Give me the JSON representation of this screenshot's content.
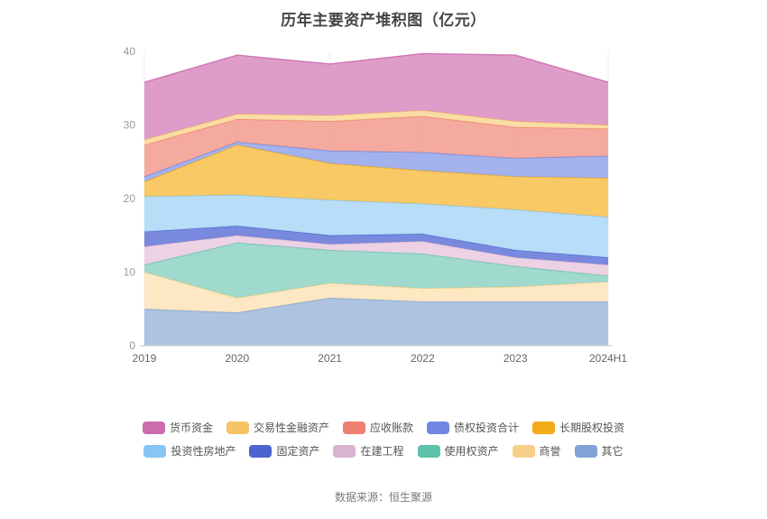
{
  "page": {
    "title": "历年主要资产堆积图（亿元）",
    "source": "数据来源：恒生聚源"
  },
  "chart_data": {
    "type": "area",
    "stacked": true,
    "title": "历年主要资产堆积图（亿元）",
    "x": [
      "2019",
      "2020",
      "2021",
      "2022",
      "2023",
      "2024H1"
    ],
    "xlabel": "",
    "ylabel": "",
    "ylim": [
      0,
      40
    ],
    "yticks": [
      0,
      10,
      20,
      30,
      40
    ],
    "grid": "faint-vertical-gridlines",
    "legend_position": "bottom",
    "series_order": "bottom-to-top",
    "series": [
      {
        "name": "其它",
        "values": [
          5.0,
          4.5,
          6.5,
          6.0,
          6.0,
          6.0
        ],
        "color": "#7fa3d4",
        "area": "#9db8dc"
      },
      {
        "name": "商誉",
        "values": [
          5.0,
          2.0,
          2.0,
          1.8,
          2.0,
          2.7
        ],
        "color": "#f7cf8a",
        "area": "#fde4b8"
      },
      {
        "name": "使用权资产",
        "values": [
          1.0,
          7.5,
          4.5,
          4.7,
          2.8,
          0.8
        ],
        "color": "#5fc0ab",
        "area": "#8ed3c3"
      },
      {
        "name": "在建工程",
        "values": [
          2.5,
          1.0,
          0.8,
          1.7,
          1.2,
          1.5
        ],
        "color": "#d9b3cf",
        "area": "#e9cadf"
      },
      {
        "name": "固定资产",
        "values": [
          2.0,
          1.3,
          1.2,
          1.0,
          1.0,
          1.0
        ],
        "color": "#4d63cf",
        "area": "#6275d8"
      },
      {
        "name": "投资性房地产",
        "values": [
          4.8,
          4.2,
          4.8,
          4.1,
          5.5,
          5.5
        ],
        "color": "#86c5f4",
        "area": "#aad7f7"
      },
      {
        "name": "长期股权投资",
        "values": [
          2.0,
          6.8,
          5.0,
          4.5,
          4.5,
          5.3
        ],
        "color": "#f2ab18",
        "area": "#f7c04a"
      },
      {
        "name": "债权投资合计",
        "values": [
          0.7,
          0.4,
          1.7,
          2.5,
          2.5,
          3.0
        ],
        "color": "#6f87e3",
        "area": "#93a5ea"
      },
      {
        "name": "应收账款",
        "values": [
          4.3,
          3.1,
          4.0,
          4.9,
          4.2,
          3.7
        ],
        "color": "#ee7f70",
        "area": "#f39b8e"
      },
      {
        "name": "交易性金融资产",
        "values": [
          0.7,
          0.7,
          0.8,
          0.8,
          0.8,
          0.5
        ],
        "color": "#f5c464",
        "area": "#f9d795"
      },
      {
        "name": "货币资金",
        "values": [
          7.8,
          8.0,
          7.0,
          7.7,
          9.0,
          5.8
        ],
        "color": "#cc6bad",
        "area": "#d88cbf"
      }
    ],
    "legend_rows": [
      [
        "货币资金",
        "交易性金融资产",
        "应收账款",
        "债权投资合计",
        "长期股权投资"
      ],
      [
        "投资性房地产",
        "固定资产",
        "在建工程",
        "使用权资产",
        "商誉",
        "其它"
      ]
    ]
  }
}
